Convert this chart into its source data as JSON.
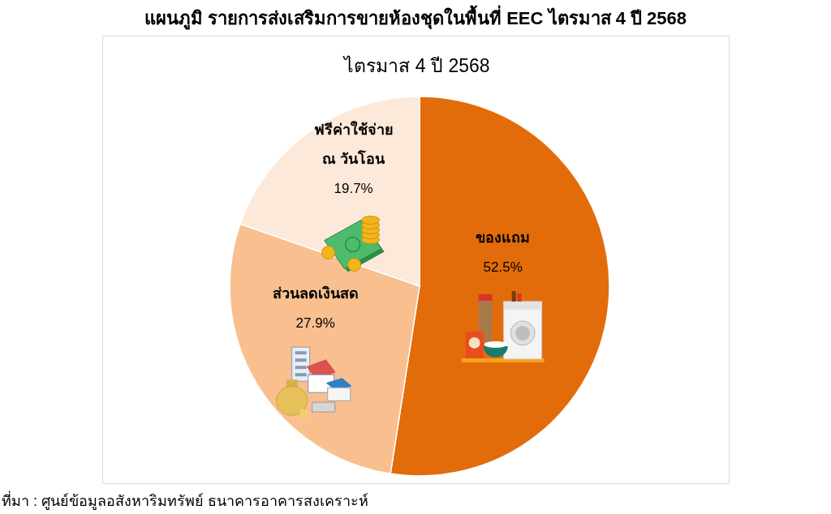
{
  "chart_data": {
    "type": "pie",
    "title": "แผนภูมิ รายการส่งเสริมการขายห้องชุดในพื้นที่ EEC ไตรมาส 4 ปี 2568",
    "subtitle": "ไตรมาส 4 ปี 2568",
    "categories": [
      "ของแถม",
      "ส่วนลดเงินสด",
      "ฟรีค่าใช้จ่าย ณ วันโอน"
    ],
    "values": [
      52.5,
      27.9,
      19.7
    ],
    "colors": [
      "#e36c0a",
      "#f9bf8f",
      "#fde9d9"
    ],
    "value_labels": [
      "52.5%",
      "27.9%",
      "19.7%"
    ],
    "annotations": [
      "ที่มา : ศูนย์ข้อมูลอสังหาริมทรัพย์ ธนาคารอาคารสงเคราะห์"
    ]
  }
}
